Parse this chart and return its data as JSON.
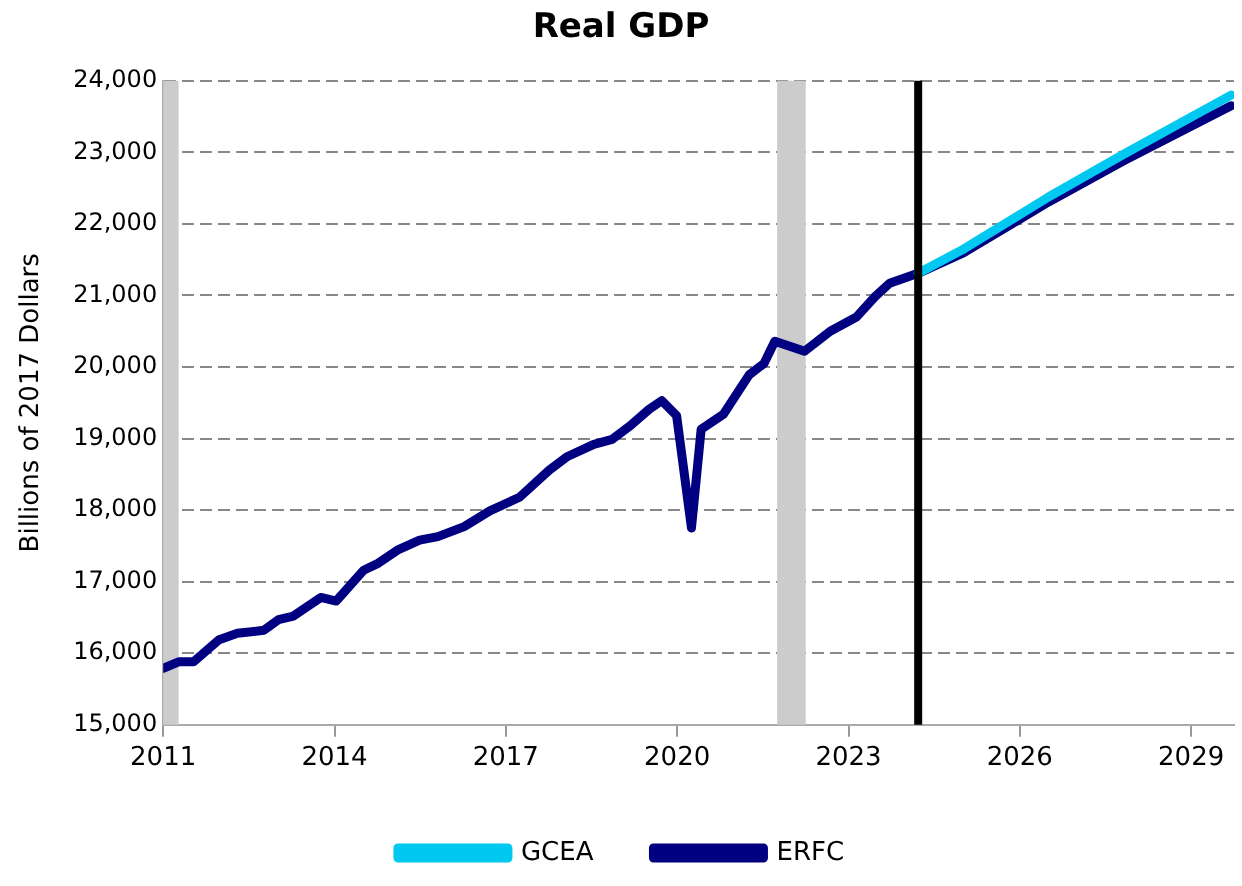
{
  "chart_data": {
    "type": "line",
    "title": "Real GDP",
    "ylabel": "Billions of 2017 Dollars",
    "xlim": [
      2011,
      2029.75
    ],
    "xticks": [
      2011,
      2014,
      2017,
      2020,
      2023,
      2026,
      2029
    ],
    "ylim": [
      15000,
      24000
    ],
    "yticks": [
      {
        "value": 15000,
        "label": "15,000"
      },
      {
        "value": 16000,
        "label": "16,000"
      },
      {
        "value": 17000,
        "label": "17,000"
      },
      {
        "value": 18000,
        "label": "18,000"
      },
      {
        "value": 19000,
        "label": "19,000"
      },
      {
        "value": 20000,
        "label": "20,000"
      },
      {
        "value": 21000,
        "label": "21,000"
      },
      {
        "value": 22000,
        "label": "22,000"
      },
      {
        "value": 23000,
        "label": "23,000"
      },
      {
        "value": 24000,
        "label": "24,000"
      }
    ],
    "grid": "y",
    "legend": "bottom",
    "marker": "none",
    "line_style": "solid",
    "series": [
      {
        "name": "GCEA",
        "color": "#00c8f0",
        "x": [
          2024.22,
          2025.02,
          2026.51,
          2027.81,
          2029.7
        ],
        "values": [
          21310,
          21650,
          22380,
          22970,
          23800
        ]
      },
      {
        "name": "ERFC",
        "color": "#000080",
        "x": [
          2011.0,
          2011.27,
          2011.53,
          2011.98,
          2012.3,
          2012.76,
          2013.02,
          2013.28,
          2013.76,
          2014.03,
          2014.51,
          2014.77,
          2015.1,
          2015.49,
          2015.81,
          2016.27,
          2016.72,
          2017.24,
          2017.76,
          2018.08,
          2018.54,
          2018.86,
          2019.18,
          2019.51,
          2019.73,
          2019.99,
          2020.25,
          2020.42,
          2020.81,
          2021.26,
          2021.52,
          2021.71,
          2022.23,
          2022.68,
          2023.14,
          2023.46,
          2023.72,
          2024.22,
          2025.02,
          2026.51,
          2027.81,
          2029.7
        ],
        "values": [
          15790,
          15880,
          15880,
          16190,
          16280,
          16320,
          16470,
          16520,
          16780,
          16730,
          17160,
          17260,
          17440,
          17580,
          17630,
          17770,
          17990,
          18180,
          18560,
          18750,
          18920,
          18990,
          19180,
          19410,
          19530,
          19320,
          17750,
          19130,
          19340,
          19890,
          20050,
          20360,
          20220,
          20500,
          20700,
          20980,
          21170,
          21310,
          21600,
          22310,
          22880,
          23650
        ]
      }
    ],
    "bands": [
      {
        "axis": "x",
        "from": 2011.0,
        "to": 2011.27,
        "color": "#cccccc"
      },
      {
        "axis": "x",
        "from": 2021.75,
        "to": 2022.25,
        "color": "#cccccc"
      }
    ],
    "ref_lines": [
      {
        "axis": "x",
        "value": 2024.22,
        "color": "#000000"
      }
    ]
  }
}
